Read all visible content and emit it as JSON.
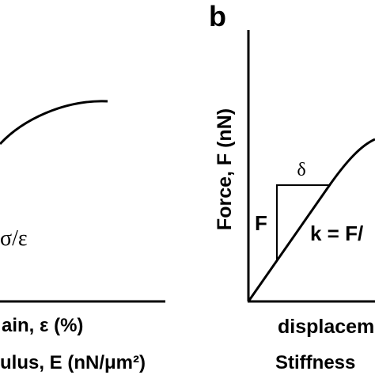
{
  "panel_a": {
    "x_axis_label": "ain, ε (%)",
    "formula": "σ/ε",
    "caption": "ulus, E (nN/μm²)"
  },
  "panel_b": {
    "panel_letter": "b",
    "y_axis_label": "Force, F (nN)",
    "force_label": "F",
    "displacement_label": "δ",
    "stiffness_formula": "k = F/",
    "x_axis_label": "displacem",
    "caption": "Stiffness"
  }
}
